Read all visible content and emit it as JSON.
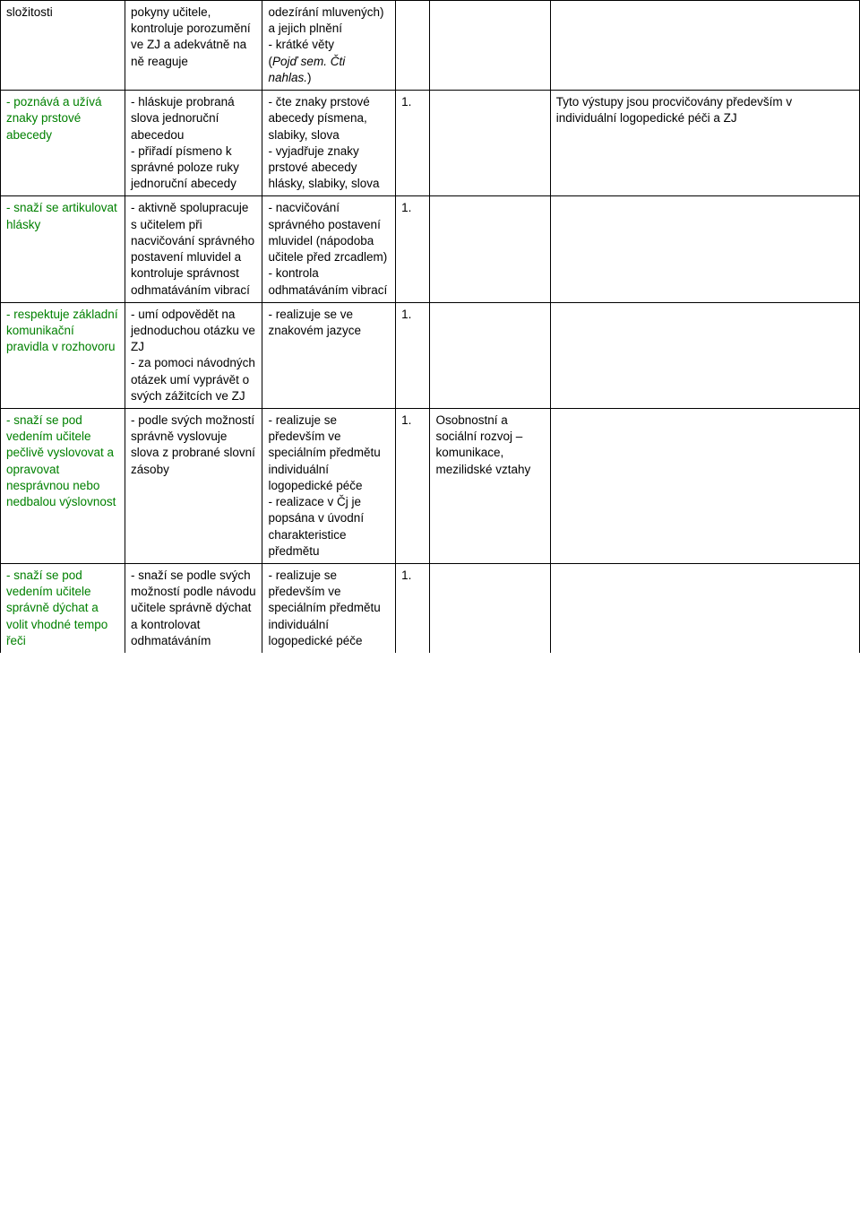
{
  "rows": [
    {
      "c1": {
        "text": "složitosti",
        "green": false
      },
      "c2": "pokyny učitele, kontroluje porozumění ve ZJ a adekvátně na ně reaguje",
      "c3_pre": "odezírání mluvených) a jejich plnění\n- krátké věty\n(",
      "c3_italic": "Pojď sem. Čti nahlas.",
      "c3_post": ")",
      "c4": "",
      "c5": "",
      "c6": ""
    },
    {
      "c1": {
        "text": "- poznává a užívá znaky prstové abecedy",
        "green": true
      },
      "c2": "- hláskuje probraná slova jednoruční abecedou\n- přiřadí písmeno k správné poloze ruky jednoruční abecedy",
      "c3": "- čte znaky prstové abecedy písmena, slabiky, slova\n- vyjadřuje znaky prstové abecedy hlásky, slabiky, slova",
      "c4": "1.",
      "c5": "",
      "c6": "Tyto výstupy jsou procvičovány především v individuální logopedické péči a ZJ"
    },
    {
      "c1": {
        "text": "- snaží se artikulovat hlásky",
        "green": true
      },
      "c2": "- aktivně spolupracuje s učitelem při nacvičování správného postavení mluvidel a kontroluje správnost odhmatáváním vibrací",
      "c3": "- nacvičování správného postavení mluvidel (nápodoba učitele před zrcadlem)\n- kontrola odhmatáváním vibrací",
      "c4": "1.",
      "c5": "",
      "c6": ""
    },
    {
      "c1": {
        "text": "- respektuje základní komunikační pravidla v rozhovoru",
        "green": true
      },
      "c2": "- umí odpovědět na jednoduchou otázku ve ZJ\n- za pomoci návodných otázek umí vyprávět o svých zážitcích ve ZJ",
      "c3": "- realizuje se ve znakovém jazyce",
      "c4": "1.",
      "c5": "",
      "c6": ""
    },
    {
      "c1": {
        "text": "- snaží se pod vedením učitele pečlivě vyslovovat a opravovat nesprávnou nebo nedbalou výslovnost",
        "green": true
      },
      "c2": "- podle svých možností správně vyslovuje slova z probrané slovní zásoby",
      "c3": "- realizuje se především ve speciálním předmětu individuální logopedické péče\n- realizace v Čj je popsána v úvodní charakteristice předmětu",
      "c4": "1.",
      "c5": "Osobnostní a sociální rozvoj – komunikace, mezilidské vztahy",
      "c6": ""
    },
    {
      "c1": {
        "text": "- snaží se pod vedením učitele správně dýchat a volit vhodné tempo řeči",
        "green": true
      },
      "c2": "- snaží se podle svých možností podle návodu učitele správně dýchat a kontrolovat odhmatáváním",
      "c3": "- realizuje se především ve speciálním předmětu individuální logopedické péče",
      "c4": "1.",
      "c5": "",
      "c6": "",
      "noBottom": true
    }
  ]
}
